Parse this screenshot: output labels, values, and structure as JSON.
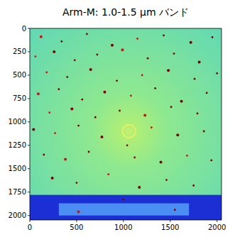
{
  "chart_data": {
    "type": "image",
    "title": "Arm-M: 1.0-1.5 μm バンド",
    "xlim": [
      0,
      2048
    ],
    "ylim": [
      2048,
      0
    ],
    "xticks": [
      0,
      500,
      1000,
      1500,
      2000
    ],
    "yticks": [
      0,
      250,
      500,
      750,
      1000,
      1250,
      1500,
      1750,
      2000
    ],
    "ring": {
      "x": 1060,
      "y": 1100,
      "r": 70
    },
    "band": {
      "y": [
        1780,
        2048
      ]
    },
    "inner_band": {
      "x": [
        310,
        1700
      ],
      "y": [
        1870,
        2000
      ]
    },
    "spots": {
      "x": [
        120,
        340,
        610,
        880,
        1150,
        1430,
        1720,
        1950,
        60,
        260,
        480,
        720,
        990,
        1260,
        1540,
        1810,
        180,
        400,
        650,
        930,
        1200,
        1480,
        1760,
        2000,
        90,
        310,
        560,
        800,
        1080,
        1340,
        1620,
        1890,
        210,
        450,
        700,
        960,
        1230,
        1510,
        1790,
        40,
        270,
        520,
        770,
        1040,
        1300,
        1580,
        1860,
        150,
        380,
        630,
        1120,
        1400,
        1680,
        1940,
        240,
        500,
        840,
        1170,
        1460,
        1750,
        520,
        1000,
        1550
      ],
      "y": [
        90,
        140,
        60,
        180,
        110,
        75,
        150,
        95,
        300,
        250,
        340,
        280,
        230,
        320,
        270,
        360,
        470,
        520,
        440,
        560,
        500,
        450,
        540,
        480,
        700,
        650,
        760,
        680,
        720,
        640,
        780,
        690,
        900,
        860,
        950,
        880,
        930,
        840,
        910,
        1080,
        1120,
        1040,
        1160,
        1250,
        1060,
        1140,
        1100,
        1350,
        1400,
        1320,
        1380,
        1430,
        1360,
        1410,
        1600,
        1650,
        1560,
        1700,
        1620,
        1680,
        1960,
        1830,
        1940
      ]
    }
  }
}
